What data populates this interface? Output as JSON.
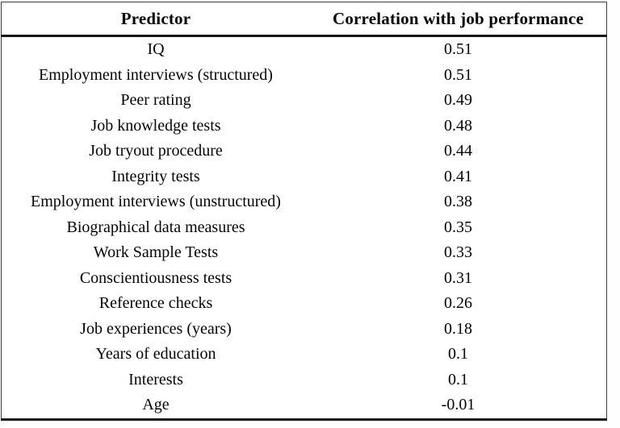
{
  "table": {
    "columns": [
      "Predictor",
      "Correlation with job performance"
    ],
    "rows": [
      {
        "predictor": "IQ",
        "correlation": "0.51"
      },
      {
        "predictor": "Employment interviews (structured)",
        "correlation": "0.51"
      },
      {
        "predictor": "Peer rating",
        "correlation": "0.49"
      },
      {
        "predictor": "Job knowledge tests",
        "correlation": "0.48"
      },
      {
        "predictor": "Job tryout procedure",
        "correlation": "0.44"
      },
      {
        "predictor": "Integrity tests",
        "correlation": "0.41"
      },
      {
        "predictor": "Employment interviews (unstructured)",
        "correlation": "0.38"
      },
      {
        "predictor": "Biographical data measures",
        "correlation": "0.35"
      },
      {
        "predictor": "Work Sample Tests",
        "correlation": "0.33"
      },
      {
        "predictor": "Conscientiousness tests",
        "correlation": "0.31"
      },
      {
        "predictor": "Reference checks",
        "correlation": "0.26"
      },
      {
        "predictor": "Job experiences (years)",
        "correlation": "0.18"
      },
      {
        "predictor": "Years of education",
        "correlation": "0.1"
      },
      {
        "predictor": "Interests",
        "correlation": "0.1"
      },
      {
        "predictor": "Age",
        "correlation": "-0.01"
      }
    ]
  },
  "chart_data": {
    "type": "table",
    "title": "",
    "columns": [
      "Predictor",
      "Correlation with job performance"
    ],
    "rows": [
      [
        "IQ",
        0.51
      ],
      [
        "Employment interviews (structured)",
        0.51
      ],
      [
        "Peer rating",
        0.49
      ],
      [
        "Job knowledge tests",
        0.48
      ],
      [
        "Job tryout procedure",
        0.44
      ],
      [
        "Integrity tests",
        0.41
      ],
      [
        "Employment interviews (unstructured)",
        0.38
      ],
      [
        "Biographical data measures",
        0.35
      ],
      [
        "Work Sample Tests",
        0.33
      ],
      [
        "Conscientiousness tests",
        0.31
      ],
      [
        "Reference checks",
        0.26
      ],
      [
        "Job experiences (years)",
        0.18
      ],
      [
        "Years of education",
        0.1
      ],
      [
        "Interests",
        0.1
      ],
      [
        "Age",
        -0.01
      ]
    ],
    "layout": {
      "grid": false,
      "header_rule": true,
      "bottom_rule": true,
      "text_color": "#050505",
      "background": "#ffffff"
    }
  }
}
